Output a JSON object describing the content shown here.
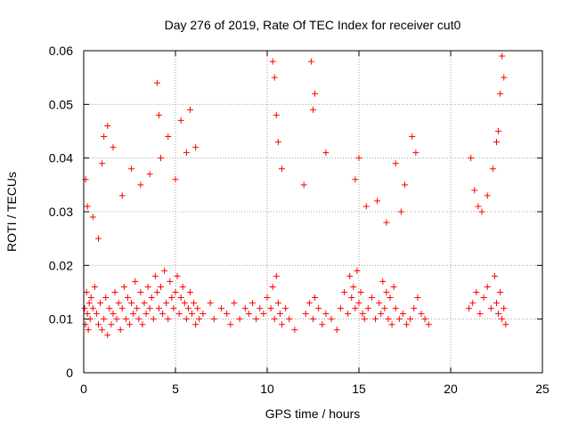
{
  "chart_data": {
    "type": "scatter",
    "title": "Day 276 of 2019, Rate Of TEC Index for receiver cut0",
    "xlabel": "GPS time / hours",
    "ylabel": "ROTI / TECUs",
    "xlim": [
      0,
      25
    ],
    "ylim": [
      0,
      0.06
    ],
    "xticks": [
      0,
      5,
      10,
      15,
      20,
      25
    ],
    "xtick_labels": [
      "0",
      "5",
      "10",
      "15",
      "20",
      "25"
    ],
    "yticks": [
      0,
      0.01,
      0.02,
      0.03,
      0.04,
      0.05,
      0.06
    ],
    "ytick_labels": [
      "0",
      "0.01",
      "0.02",
      "0.03",
      "0.04",
      "0.05",
      "0.06"
    ],
    "grid": true,
    "marker": "+",
    "color": "#ff0000",
    "series": [
      {
        "name": "ROTI",
        "x": [
          0.05,
          0.1,
          0.15,
          0.2,
          0.25,
          0.3,
          0.35,
          0.4,
          0.5,
          0.6,
          0.7,
          0.8,
          0.9,
          1.0,
          1.1,
          1.2,
          1.3,
          1.4,
          1.5,
          1.6,
          1.7,
          1.8,
          1.9,
          2.0,
          2.1,
          2.2,
          2.3,
          2.4,
          2.5,
          2.6,
          2.7,
          2.8,
          2.9,
          3.0,
          3.1,
          3.2,
          3.3,
          3.4,
          3.5,
          3.6,
          3.7,
          3.8,
          3.9,
          4.0,
          4.1,
          4.2,
          4.3,
          4.4,
          4.5,
          4.6,
          4.7,
          4.8,
          4.9,
          5.0,
          5.1,
          5.2,
          5.3,
          5.4,
          5.5,
          5.6,
          5.7,
          5.8,
          5.9,
          6.0,
          6.1,
          6.2,
          6.3,
          6.5,
          6.9,
          7.1,
          7.5,
          7.8,
          8.0,
          8.2,
          8.5,
          8.8,
          9.0,
          9.2,
          9.4,
          9.6,
          9.8,
          10.0,
          10.2,
          10.3,
          10.4,
          10.5,
          10.6,
          10.7,
          10.8,
          11.0,
          11.2,
          11.5,
          12.1,
          12.3,
          12.5,
          12.6,
          12.8,
          13.0,
          13.2,
          13.5,
          13.8,
          14.0,
          14.2,
          14.4,
          14.5,
          14.6,
          14.7,
          14.8,
          14.9,
          15.0,
          15.1,
          15.2,
          15.3,
          15.5,
          15.7,
          15.9,
          16.1,
          16.2,
          16.3,
          16.4,
          16.5,
          16.6,
          16.7,
          16.8,
          16.9,
          17.0,
          17.2,
          17.4,
          17.6,
          17.8,
          18.0,
          18.2,
          18.4,
          18.6,
          18.8,
          21.0,
          21.2,
          21.4,
          21.6,
          21.8,
          22.0,
          22.2,
          22.4,
          22.5,
          22.6,
          22.7,
          22.8,
          22.9,
          23.0,
          0.1,
          0.2,
          0.5,
          0.8,
          1.0,
          1.1,
          1.3,
          1.6,
          2.1,
          2.6,
          3.1,
          3.6,
          4.0,
          4.1,
          4.2,
          4.6,
          5.0,
          5.3,
          5.6,
          5.8,
          6.1,
          10.3,
          10.4,
          10.5,
          10.6,
          10.8,
          12.0,
          12.4,
          12.5,
          12.6,
          13.2,
          14.8,
          15.0,
          15.4,
          16.0,
          16.5,
          17.0,
          17.3,
          17.5,
          17.9,
          18.1,
          21.1,
          21.3,
          21.5,
          21.7,
          22.0,
          22.3,
          22.5,
          22.6,
          22.7,
          22.8,
          22.9
        ],
        "y": [
          0.012,
          0.009,
          0.015,
          0.011,
          0.008,
          0.013,
          0.01,
          0.014,
          0.012,
          0.016,
          0.011,
          0.009,
          0.013,
          0.008,
          0.01,
          0.014,
          0.007,
          0.012,
          0.009,
          0.011,
          0.015,
          0.01,
          0.013,
          0.008,
          0.012,
          0.016,
          0.01,
          0.014,
          0.009,
          0.013,
          0.011,
          0.017,
          0.012,
          0.01,
          0.015,
          0.009,
          0.013,
          0.011,
          0.016,
          0.012,
          0.014,
          0.01,
          0.018,
          0.015,
          0.012,
          0.016,
          0.011,
          0.019,
          0.013,
          0.01,
          0.017,
          0.014,
          0.012,
          0.015,
          0.018,
          0.011,
          0.014,
          0.016,
          0.013,
          0.01,
          0.012,
          0.015,
          0.011,
          0.013,
          0.009,
          0.012,
          0.01,
          0.011,
          0.013,
          0.01,
          0.012,
          0.011,
          0.009,
          0.013,
          0.01,
          0.012,
          0.011,
          0.013,
          0.01,
          0.012,
          0.011,
          0.014,
          0.012,
          0.016,
          0.01,
          0.018,
          0.013,
          0.011,
          0.009,
          0.012,
          0.01,
          0.008,
          0.011,
          0.013,
          0.01,
          0.014,
          0.012,
          0.009,
          0.011,
          0.01,
          0.008,
          0.012,
          0.015,
          0.011,
          0.018,
          0.014,
          0.016,
          0.012,
          0.019,
          0.013,
          0.015,
          0.011,
          0.01,
          0.012,
          0.014,
          0.01,
          0.013,
          0.011,
          0.017,
          0.012,
          0.015,
          0.01,
          0.014,
          0.009,
          0.016,
          0.012,
          0.01,
          0.011,
          0.009,
          0.01,
          0.012,
          0.014,
          0.011,
          0.01,
          0.009,
          0.012,
          0.013,
          0.015,
          0.011,
          0.014,
          0.016,
          0.012,
          0.018,
          0.013,
          0.011,
          0.015,
          0.01,
          0.012,
          0.009,
          0.036,
          0.031,
          0.029,
          0.025,
          0.039,
          0.044,
          0.046,
          0.042,
          0.033,
          0.038,
          0.035,
          0.037,
          0.054,
          0.048,
          0.04,
          0.044,
          0.036,
          0.047,
          0.041,
          0.049,
          0.042,
          0.058,
          0.055,
          0.048,
          0.043,
          0.038,
          0.035,
          0.058,
          0.049,
          0.052,
          0.041,
          0.036,
          0.04,
          0.031,
          0.032,
          0.028,
          0.039,
          0.03,
          0.035,
          0.044,
          0.041,
          0.04,
          0.034,
          0.031,
          0.03,
          0.033,
          0.038,
          0.043,
          0.045,
          0.052,
          0.059,
          0.055
        ]
      }
    ]
  }
}
